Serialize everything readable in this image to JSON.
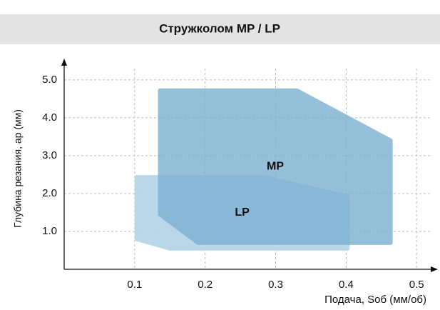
{
  "chart_data": {
    "type": "region",
    "title": "Стружколом MP / LP",
    "x_label": "Подача, Sоб (мм/об)",
    "y_label": "Глубина резания, ap (мм)",
    "xlim": [
      0,
      0.52
    ],
    "xticks": [
      0.1,
      0.2,
      0.3,
      0.4,
      0.5
    ],
    "ylim": [
      0,
      5.3
    ],
    "yticks": [
      {
        "value": 1,
        "label": "1.0"
      },
      {
        "value": 2,
        "label": "2.0"
      },
      {
        "value": 3,
        "label": "3.0"
      },
      {
        "value": 4,
        "label": "4.0"
      },
      {
        "value": 5,
        "label": "5.0"
      }
    ],
    "grid": true,
    "series": [
      {
        "name": "LP",
        "color": "#b7d5e9",
        "x": [
          0.103,
          0.103,
          0.283,
          0.402,
          0.402,
          0.15
        ],
        "values": [
          0.8,
          2.43,
          2.43,
          1.92,
          0.55,
          0.55
        ]
      },
      {
        "name": "MP",
        "color": "#7fb2d2",
        "x": [
          0.136,
          0.136,
          0.33,
          0.463,
          0.463,
          0.19
        ],
        "values": [
          1.45,
          4.72,
          4.72,
          3.4,
          0.7,
          0.7
        ]
      }
    ]
  }
}
